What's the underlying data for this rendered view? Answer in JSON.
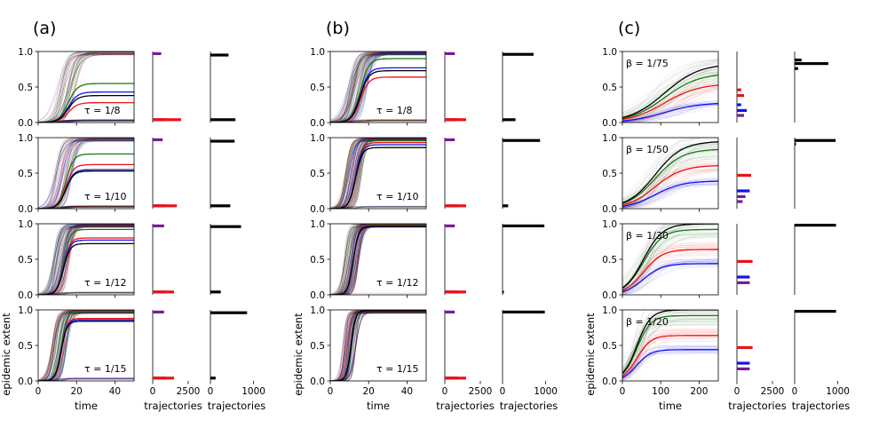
{
  "figure": {
    "ylabel": "epidemic extent",
    "xlabel_time": "time",
    "xlabel_hist": "trajectories"
  },
  "colors": {
    "green": "#117a11",
    "red": "#ee1111",
    "blue": "#1111ee",
    "black": "#000000",
    "purple": "#7a1a9a"
  },
  "chart_data": [
    {
      "panel": "(a)",
      "type": "line",
      "xlim": [
        0,
        50
      ],
      "ylim": [
        0,
        1.0
      ],
      "xticks": [
        "0",
        "20",
        "40"
      ],
      "yticks": [
        "0.0",
        "0.5",
        "1.0"
      ],
      "hist1_ticks": [
        "0",
        "2500"
      ],
      "hist2_ticks": [
        "0",
        "1000"
      ],
      "rows": [
        {
          "label": "τ = 1/8",
          "onset": 13,
          "rate": 0.45,
          "finals": {
            "green": 0.55,
            "blue": 0.43,
            "black": 0.38,
            "red": 0.28
          },
          "hist1": [
            {
              "y": 0.97,
              "color": "purple",
              "value": 600
            },
            {
              "y": 0.04,
              "color": "blue",
              "value": 900
            },
            {
              "y": 0.04,
              "color": "red",
              "value": 2000
            }
          ],
          "hist2": [
            {
              "y": 0.95,
              "value": 420
            },
            {
              "y": 0.04,
              "value": 580
            }
          ]
        },
        {
          "label": "τ = 1/10",
          "onset": 12,
          "rate": 0.55,
          "finals": {
            "green": 0.77,
            "red": 0.62,
            "blue": 0.55,
            "black": 0.53
          },
          "hist1": [
            {
              "y": 0.97,
              "color": "purple",
              "value": 700
            },
            {
              "y": 0.04,
              "color": "blue",
              "value": 900
            },
            {
              "y": 0.04,
              "color": "red",
              "value": 1700
            }
          ],
          "hist2": [
            {
              "y": 0.95,
              "value": 560
            },
            {
              "y": 0.04,
              "value": 460
            }
          ]
        },
        {
          "label": "τ = 1/12",
          "onset": 11,
          "rate": 0.65,
          "finals": {
            "green": 0.92,
            "red": 0.8,
            "blue": 0.77,
            "black": 0.72
          },
          "hist1": [
            {
              "y": 0.97,
              "color": "purple",
              "value": 800
            },
            {
              "y": 0.04,
              "color": "blue",
              "value": 900
            },
            {
              "y": 0.04,
              "color": "red",
              "value": 1500
            }
          ],
          "hist2": [
            {
              "y": 0.96,
              "value": 710
            },
            {
              "y": 0.04,
              "value": 240
            }
          ]
        },
        {
          "label": "τ = 1/15",
          "onset": 10,
          "rate": 0.75,
          "finals": {
            "green": 0.98,
            "red": 0.88,
            "blue": 0.86,
            "black": 0.84
          },
          "hist1": [
            {
              "y": 0.97,
              "color": "purple",
              "value": 800
            },
            {
              "y": 0.04,
              "color": "blue",
              "value": 900
            },
            {
              "y": 0.04,
              "color": "red",
              "value": 1500
            }
          ],
          "hist2": [
            {
              "y": 0.96,
              "value": 850
            },
            {
              "y": 0.04,
              "value": 120
            }
          ]
        }
      ]
    },
    {
      "panel": "(b)",
      "type": "line",
      "xlim": [
        0,
        50
      ],
      "ylim": [
        0,
        1.0
      ],
      "xticks": [
        "0",
        "20",
        "40"
      ],
      "yticks": [
        "0.0",
        "0.5",
        "1.0"
      ],
      "hist1_ticks": [
        "0",
        "2500"
      ],
      "hist2_ticks": [
        "0",
        "1000"
      ],
      "rows": [
        {
          "label": "τ = 1/8",
          "onset": 13,
          "rate": 0.5,
          "finals": {
            "green": 0.9,
            "blue": 0.77,
            "black": 0.73,
            "red": 0.64
          },
          "hist1": [
            {
              "y": 0.97,
              "color": "purple",
              "value": 700
            },
            {
              "y": 0.04,
              "color": "blue",
              "value": 900
            },
            {
              "y": 0.04,
              "color": "red",
              "value": 1500
            }
          ],
          "hist2": [
            {
              "y": 0.96,
              "value": 720
            },
            {
              "y": 0.04,
              "value": 300
            }
          ]
        },
        {
          "label": "τ = 1/10",
          "onset": 11,
          "rate": 0.65,
          "finals": {
            "green": 0.96,
            "red": 0.93,
            "blue": 0.9,
            "black": 0.86
          },
          "hist1": [
            {
              "y": 0.97,
              "color": "purple",
              "value": 700
            },
            {
              "y": 0.04,
              "color": "blue",
              "value": 900
            },
            {
              "y": 0.04,
              "color": "red",
              "value": 1500
            }
          ],
          "hist2": [
            {
              "y": 0.96,
              "value": 870
            },
            {
              "y": 0.04,
              "value": 130
            }
          ]
        },
        {
          "label": "τ = 1/12",
          "onset": 10,
          "rate": 0.8,
          "finals": {
            "green": 0.99,
            "red": 0.98,
            "blue": 0.97,
            "black": 0.96
          },
          "hist1": [
            {
              "y": 0.97,
              "color": "purple",
              "value": 700
            },
            {
              "y": 0.04,
              "color": "blue",
              "value": 900
            },
            {
              "y": 0.04,
              "color": "red",
              "value": 1500
            }
          ],
          "hist2": [
            {
              "y": 0.97,
              "value": 970
            },
            {
              "y": 0.04,
              "value": 30
            }
          ]
        },
        {
          "label": "τ = 1/15",
          "onset": 9,
          "rate": 0.95,
          "finals": {
            "green": 1.0,
            "red": 0.99,
            "blue": 0.99,
            "black": 0.99
          },
          "hist1": [
            {
              "y": 0.97,
              "color": "purple",
              "value": 700
            },
            {
              "y": 0.04,
              "color": "blue",
              "value": 900
            },
            {
              "y": 0.04,
              "color": "red",
              "value": 1500
            }
          ],
          "hist2": [
            {
              "y": 0.97,
              "value": 980
            }
          ]
        }
      ]
    },
    {
      "panel": "(c)",
      "type": "line",
      "xlim": [
        0,
        250
      ],
      "ylim": [
        0,
        1.0
      ],
      "xticks": [
        "0",
        "100",
        "200"
      ],
      "yticks": [
        "0.0",
        "0.5",
        "1.0"
      ],
      "hist1_ticks": [
        "0",
        "2500"
      ],
      "hist2_ticks": [
        "0",
        "1000"
      ],
      "rows": [
        {
          "label": "β = 1/75",
          "onset": 110,
          "rate": 0.022,
          "finals": {
            "black": 0.83,
            "green": 0.7,
            "red": 0.55,
            "blue": 0.28
          },
          "hist1": [
            {
              "y": 0.46,
              "color": "red",
              "value": 300
            },
            {
              "y": 0.38,
              "color": "red",
              "value": 500
            },
            {
              "y": 0.25,
              "color": "blue",
              "value": 300
            },
            {
              "y": 0.17,
              "color": "blue",
              "value": 700
            },
            {
              "y": 0.1,
              "color": "purple",
              "value": 500
            }
          ],
          "hist2": [
            {
              "y": 0.88,
              "value": 160
            },
            {
              "y": 0.83,
              "value": 780
            },
            {
              "y": 0.76,
              "value": 80
            }
          ]
        },
        {
          "label": "β = 1/50",
          "onset": 85,
          "rate": 0.028,
          "finals": {
            "black": 0.95,
            "green": 0.84,
            "red": 0.61,
            "blue": 0.39
          },
          "hist1": [
            {
              "y": 0.47,
              "color": "red",
              "value": 1000
            },
            {
              "y": 0.25,
              "color": "blue",
              "value": 900
            },
            {
              "y": 0.17,
              "color": "purple",
              "value": 600
            },
            {
              "y": 0.1,
              "color": "purple",
              "value": 400
            }
          ],
          "hist2": [
            {
              "y": 0.96,
              "value": 950
            },
            {
              "y": 0.91,
              "value": 30
            }
          ]
        },
        {
          "label": "β = 1/30",
          "onset": 55,
          "rate": 0.04,
          "finals": {
            "black": 1.0,
            "green": 0.92,
            "red": 0.64,
            "blue": 0.44
          },
          "hist1": [
            {
              "y": 0.47,
              "color": "red",
              "value": 1100
            },
            {
              "y": 0.25,
              "color": "blue",
              "value": 900
            },
            {
              "y": 0.17,
              "color": "purple",
              "value": 900
            }
          ],
          "hist2": [
            {
              "y": 0.98,
              "value": 960
            }
          ]
        },
        {
          "label": "β = 1/20",
          "onset": 38,
          "rate": 0.055,
          "finals": {
            "black": 1.0,
            "green": 0.92,
            "red": 0.64,
            "blue": 0.44
          },
          "hist1": [
            {
              "y": 0.47,
              "color": "red",
              "value": 1100
            },
            {
              "y": 0.25,
              "color": "blue",
              "value": 900
            },
            {
              "y": 0.17,
              "color": "purple",
              "value": 900
            }
          ],
          "hist2": [
            {
              "y": 0.98,
              "value": 960
            }
          ]
        }
      ]
    }
  ]
}
